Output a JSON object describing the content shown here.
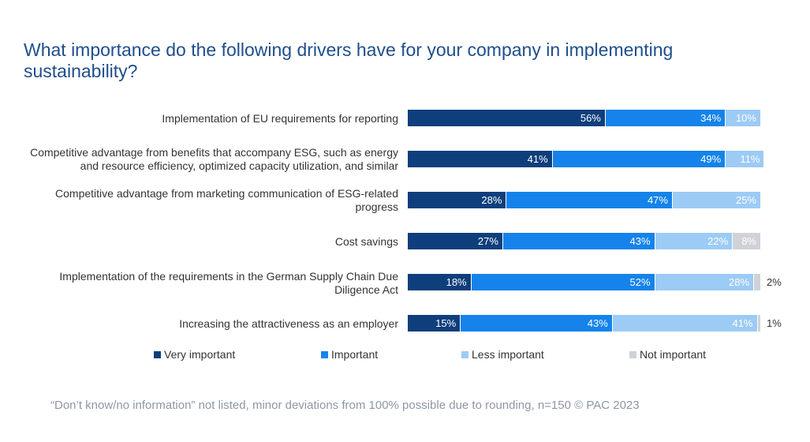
{
  "title": "What importance do the following drivers have for your company in implementing sustainability?",
  "footnote": "“Don’t know/no information” not listed, minor deviations from 100% possible due to rounding, n=150   © PAC 2023",
  "chart_data": {
    "type": "bar",
    "orientation": "horizontal",
    "stacked": true,
    "unit": "%",
    "categories": [
      "Implementation of EU requirements for reporting",
      "Competitive advantage from benefits that accompany ESG, such as energy and resource efficiency, optimized capacity utilization, and similar",
      "Competitive advantage from marketing communication of ESG-related progress",
      "Cost savings",
      "Implementation of the requirements in the German Supply Chain Due Diligence Act",
      "Increasing the attractiveness as an employer"
    ],
    "series": [
      {
        "name": "Very important",
        "color": "#0e3e7c",
        "values": [
          56,
          41,
          28,
          27,
          18,
          15
        ],
        "labels": [
          "56%",
          "41%",
          "28%",
          "27%",
          "18%",
          "15%"
        ]
      },
      {
        "name": "Important",
        "color": "#1583eb",
        "values": [
          34,
          49,
          47,
          43,
          52,
          43
        ],
        "labels": [
          "34%",
          "49%",
          "47%",
          "43%",
          "52%",
          "43%"
        ]
      },
      {
        "name": "Less important",
        "color": "#9ccbf5",
        "values": [
          10,
          11,
          25,
          22,
          28,
          41
        ],
        "labels": [
          "10%",
          "11%",
          "25%",
          "22%",
          "28%",
          "41%"
        ]
      },
      {
        "name": "Not important",
        "color": "#cfd3d8",
        "values": [
          0,
          0,
          0,
          8,
          2,
          1
        ],
        "labels": [
          "",
          "",
          "",
          "8%",
          "2%",
          "1%"
        ]
      }
    ],
    "xlim": [
      0,
      100
    ],
    "legend_position": "bottom",
    "grid": false
  }
}
